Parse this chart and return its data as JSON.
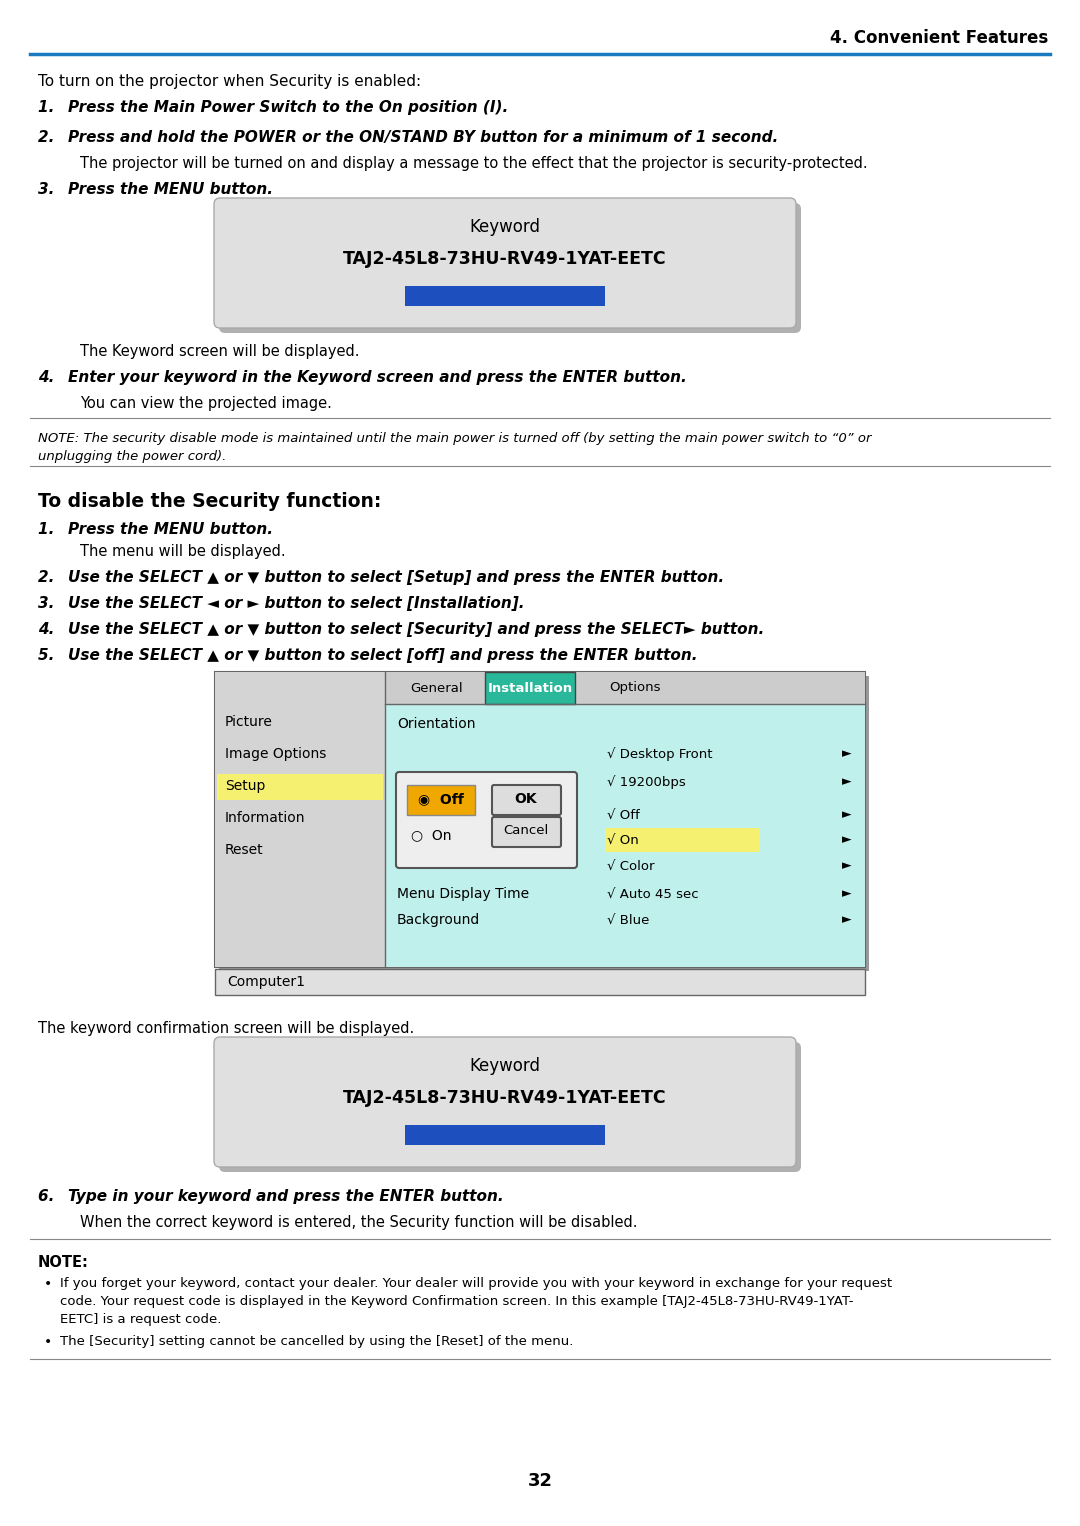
{
  "page_number": "32",
  "section_title": "4. Convenient Features",
  "header_line_color": "#1a7abf",
  "background_color": "#ffffff",
  "note1_text_line1": "NOTE: The security disable mode is maintained until the main power is turned off (by setting the main power switch to “0” or",
  "note1_text_line2": "unplugging the power cord).",
  "keyword_label": "Keyword",
  "keyword_code": "TAJ2-45L8-73HU-RV49-1YAT-EETC",
  "keyword_bg": "#e0e0e0",
  "keyword_bar_color": "#1e4fbf",
  "section2_title": "To disable the Security function:",
  "note2_bullet1_line1": "If you forget your keyword, contact your dealer. Your dealer will provide you with your keyword in exchange for your request",
  "note2_bullet1_line2": "code. Your request code is displayed in the Keyword Confirmation screen. In this example [TAJ2-45L8-73HU-RV49-1YAT-",
  "note2_bullet1_line3": "EETC] is a request code.",
  "note2_bullet2": "The [Security] setting cannot be cancelled by using the [Reset] of the menu.",
  "menu_left_items": [
    "Picture",
    "Image Options",
    "Setup",
    "Information",
    "Reset"
  ],
  "menu_left_colors": [
    "#d4d4d4",
    "#d4d4d4",
    "#f5f070",
    "#d4d4d4",
    "#d4d4d4"
  ],
  "menu_tab_active_bg": "#2ab89a",
  "menu_content_bg": "#c0f0ec",
  "menu_left_bg": "#d4d4d4",
  "menu_outer_bg": "#cccccc"
}
